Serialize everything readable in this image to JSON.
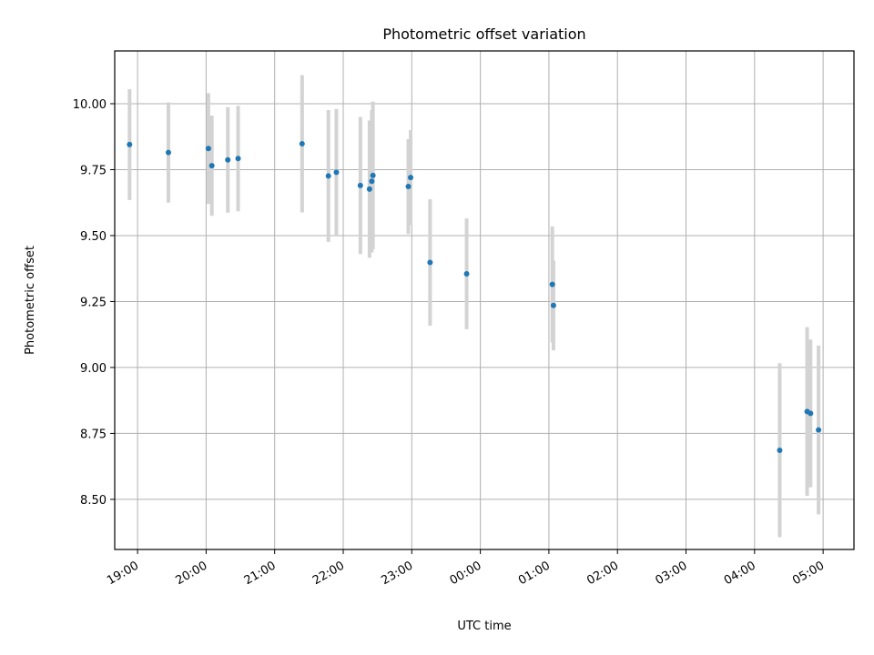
{
  "chart_data": {
    "type": "scatter",
    "title": "Photometric offset variation",
    "xlabel": "UTC time",
    "ylabel": "Photometric offset",
    "xlim": [
      "18:40",
      "05:27"
    ],
    "ylim": [
      8.31,
      10.2
    ],
    "grid": true,
    "x_ticks": [
      "19:00",
      "20:00",
      "21:00",
      "22:00",
      "23:00",
      "00:00",
      "01:00",
      "02:00",
      "03:00",
      "04:00",
      "05:00"
    ],
    "y_ticks": [
      "8.50",
      "8.75",
      "9.00",
      "9.25",
      "9.50",
      "9.75",
      "10.00"
    ],
    "colors": {
      "points": "#1f77b4",
      "error_bars": "#d3d3d3",
      "grid": "#b0b0b0"
    },
    "series": [
      {
        "points": [
          {
            "x": "18:53",
            "y": 9.845,
            "err": 0.21
          },
          {
            "x": "19:27",
            "y": 9.815,
            "err": 0.19
          },
          {
            "x": "20:02",
            "y": 9.83,
            "err": 0.21
          },
          {
            "x": "20:05",
            "y": 9.765,
            "err": 0.19
          },
          {
            "x": "20:19",
            "y": 9.787,
            "err": 0.2
          },
          {
            "x": "20:28",
            "y": 9.792,
            "err": 0.2
          },
          {
            "x": "21:24",
            "y": 9.848,
            "err": 0.26
          },
          {
            "x": "21:47",
            "y": 9.726,
            "err": 0.25
          },
          {
            "x": "21:54",
            "y": 9.74,
            "err": 0.24
          },
          {
            "x": "22:15",
            "y": 9.69,
            "err": 0.26
          },
          {
            "x": "22:23",
            "y": 9.676,
            "err": 0.26
          },
          {
            "x": "22:25",
            "y": 9.706,
            "err": 0.27
          },
          {
            "x": "22:26",
            "y": 9.728,
            "err": 0.28
          },
          {
            "x": "22:57",
            "y": 9.686,
            "err": 0.18
          },
          {
            "x": "22:59",
            "y": 9.72,
            "err": 0.18
          },
          {
            "x": "23:16",
            "y": 9.398,
            "err": 0.24
          },
          {
            "x": "23:48",
            "y": 9.355,
            "err": 0.21
          },
          {
            "x": "01:03",
            "y": 9.315,
            "err": 0.22
          },
          {
            "x": "01:04",
            "y": 9.235,
            "err": 0.17
          },
          {
            "x": "04:22",
            "y": 8.686,
            "err": 0.33
          },
          {
            "x": "04:46",
            "y": 8.833,
            "err": 0.32
          },
          {
            "x": "04:49",
            "y": 8.826,
            "err": 0.28
          },
          {
            "x": "04:56",
            "y": 8.763,
            "err": 0.32
          }
        ]
      }
    ]
  }
}
